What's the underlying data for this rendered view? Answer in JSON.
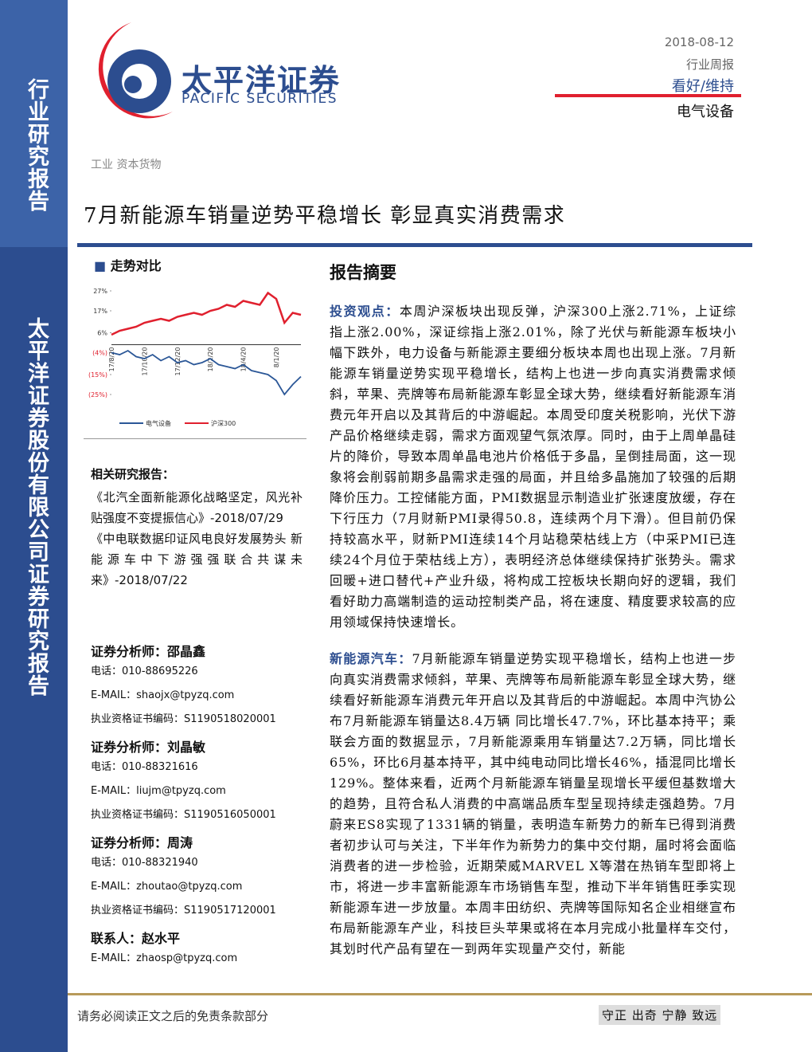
{
  "header": {
    "logo_cn": "太平洋证券",
    "logo_en": "PACIFIC SECURITIES",
    "date": "2018-08-12",
    "report_type": "行业周报",
    "rating": "看好/维持",
    "industry": "电气设备"
  },
  "sidebar": {
    "top": "行业研究报告",
    "bottom": "太平洋证券股份有限公司证券研究报告"
  },
  "breadcrumb": "工业 资本货物",
  "title": "7月新能源车销量逆势平稳增长 彰显真实消费需求",
  "trend": {
    "heading": "走势对比",
    "chart_data": {
      "type": "line",
      "x": [
        "17/8/20",
        null,
        null,
        null,
        "17/10/20",
        null,
        null,
        null,
        "17/12/20",
        null,
        null,
        null,
        "18/2/20",
        null,
        null,
        null,
        "18/4/20",
        null,
        null,
        null,
        "8/1/20",
        null,
        null,
        null
      ],
      "series": [
        {
          "name": "电气设备",
          "color": "#2b5797",
          "values": [
            -4,
            -5,
            -3,
            -6,
            -7,
            -5,
            -8,
            -6,
            -9,
            -8,
            -10,
            -9,
            -7,
            -10,
            -11,
            -12,
            -10,
            -13,
            -14,
            -15,
            -18,
            -25,
            -20,
            -16
          ]
        },
        {
          "name": "沪深300",
          "color": "#e0202e",
          "values": [
            5,
            7,
            8,
            9,
            11,
            12,
            13,
            12,
            14,
            15,
            16,
            15,
            17,
            18,
            20,
            19,
            22,
            21,
            20,
            26,
            23,
            11,
            16,
            15
          ]
        }
      ],
      "ylim": [
        -29,
        29
      ],
      "yticks": [
        {
          "value": 27,
          "label": "27%"
        },
        {
          "value": 17,
          "label": "17%"
        },
        {
          "value": 6,
          "label": "6%"
        },
        {
          "value": -4,
          "label": "(4%)"
        },
        {
          "value": -15,
          "label": "(15%)"
        },
        {
          "value": -25,
          "label": "(25%)"
        }
      ]
    }
  },
  "related": {
    "heading": "相关研究报告：",
    "items": [
      "《北汽全面新能源化战略坚定，风光补贴强度不变提振信心》-2018/07/29",
      "《中电联数据印证风电良好发展势头 新能源车中下游强强联合共谋未来》-2018/07/22"
    ]
  },
  "analysts": [
    {
      "role": "证券分析师：",
      "name": "邵晶鑫",
      "lines": [
        "电话：010-88695226",
        "E-MAIL：shaojx@tpyzq.com",
        "执业资格证书编码：S1190518020001"
      ]
    },
    {
      "role": "证券分析师：",
      "name": "刘晶敏",
      "lines": [
        "电话：010-88321616",
        "E-MAIL：liujm@tpyzq.com",
        "执业资格证书编码：S1190516050001"
      ]
    },
    {
      "role": "证券分析师：",
      "name": "周涛",
      "lines": [
        "电话：010-88321940",
        "E-MAIL：zhoutao@tpyzq.com",
        "执业资格证书编码：S1190517120001"
      ]
    },
    {
      "role": "联系人：",
      "name": "赵水平",
      "lines": [
        "E-MAIL：zhaosp@tpyzq.com"
      ]
    }
  ],
  "summary": {
    "heading": "报告摘要",
    "paragraphs": [
      {
        "lead": "投资观点：",
        "text": "本周沪深板块出现反弹，沪深300上涨2.71%，上证综指上涨2.00%，深证综指上涨2.01%，除了光伏与新能源车板块小幅下跌外，电力设备与新能源主要细分板块本周也出现上涨。7月新能源车销量逆势实现平稳增长，结构上也进一步向真实消费需求倾斜，苹果、壳牌等布局新能源车彰显全球大势，继续看好新能源车消费元年开启以及其背后的中游崛起。本周受印度关税影响，光伏下游产品价格继续走弱，需求方面观望气氛浓厚。同时，由于上周单晶硅片的降价，导致本周单晶电池片价格低于多晶，呈倒挂局面，这一现象将会削弱前期多晶需求走强的局面，并且给多晶施加了较强的后期降价压力。工控储能方面，PMI数据显示制造业扩张速度放缓，存在下行压力（7月财新PMI录得50.8，连续两个月下滑）。但目前仍保持较高水平，财新PMI连续14个月站稳荣枯线上方（中采PMI已连续24个月位于荣枯线上方），表明经济总体继续保持扩张势头。需求回暖+进口替代+产业升级，将构成工控板块长期向好的逻辑，我们看好助力高端制造的运动控制类产品，将在速度、精度要求较高的应用领域保持快速增长。"
      },
      {
        "lead": "新能源汽车：",
        "text": "7月新能源车销量逆势实现平稳增长，结构上也进一步向真实消费需求倾斜，苹果、壳牌等布局新能源车彰显全球大势，继续看好新能源车消费元年开启以及其背后的中游崛起。本周中汽协公布7月新能源车销量达8.4万辆 同比增长47.7%，环比基本持平；乘联会方面的数据显示，7月新能源乘用车销量达7.2万辆，同比增长65%，环比6月基本持平，其中纯电动同比增长46%，插混同比增长129%。整体来看，近两个月新能源车销量呈现增长平缓但基数增大的趋势，且符合私人消费的中高端品质车型呈现持续走强趋势。7月蔚来ES8实现了1331辆的销量，表明造车新势力的新车已得到消费者初步认可与关注，下半年作为新势力的集中交付期，届时将会面临消费者的进一步检验，近期荣威MARVEL X等潜在热销车型即将上市，将进一步丰富新能源车市场销售车型，推动下半年销售旺季实现新能源车进一步放量。本周丰田纺织、壳牌等国际知名企业相继宣布布局新能源车产业，科技巨头苹果或将在本月完成小批量样车交付，其划时代产品有望在一到两年实现量产交付，新能"
      }
    ]
  },
  "footer": {
    "disclaimer": "请务必阅读正文之后的免责条款部分",
    "motto": "守正 出奇 宁静 致远"
  }
}
